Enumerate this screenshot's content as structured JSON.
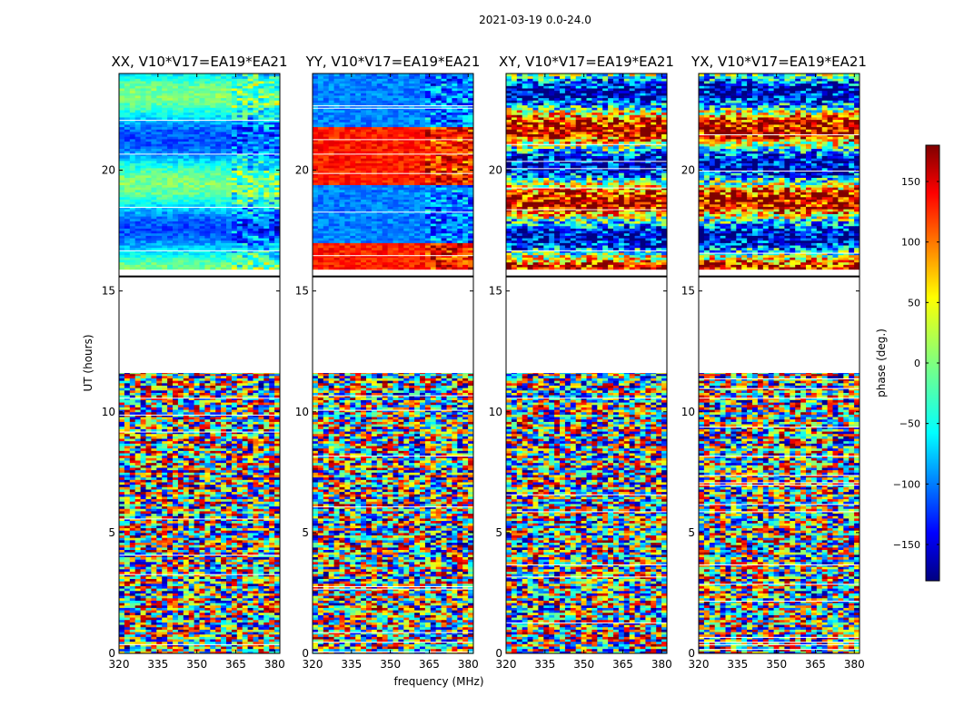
{
  "figure": {
    "suptitle": "2021-03-19 0.0-24.0"
  },
  "chart_data": {
    "type": "heatmap",
    "title": "2021-03-19 0.0-24.0",
    "xlabel": "frequency (MHz)",
    "ylabel": "UT (hours)",
    "xlim": [
      320,
      382
    ],
    "ylim": [
      0,
      24
    ],
    "xticks": [
      320,
      335,
      350,
      365,
      380
    ],
    "yticks": [
      0,
      5,
      10,
      15,
      20
    ],
    "panels": [
      {
        "title": "XX, V10*V17=EA19*EA21",
        "baseline_mode": "cool"
      },
      {
        "title": "YY, V10*V17=EA19*EA21",
        "baseline_mode": "warm"
      },
      {
        "title": "XY, V10*V17=EA19*EA21",
        "baseline_mode": "noisy"
      },
      {
        "title": "YX, V10*V17=EA19*EA21",
        "baseline_mode": "noisy"
      }
    ],
    "data_coverage_hours": [
      [
        0.0,
        11.6
      ],
      [
        15.9,
        24.0
      ]
    ],
    "gap_hours": [
      11.6,
      15.9
    ],
    "split_line_hour": 15.6,
    "colorbar": {
      "label": "phase (deg.)",
      "colormap": "jet",
      "range": [
        -180,
        180
      ],
      "ticks": [
        150,
        100,
        50,
        0,
        -50,
        -100,
        -150
      ],
      "tick_labels": [
        "150",
        "100",
        "50",
        "0",
        "−50",
        "−100",
        "−150"
      ]
    }
  }
}
